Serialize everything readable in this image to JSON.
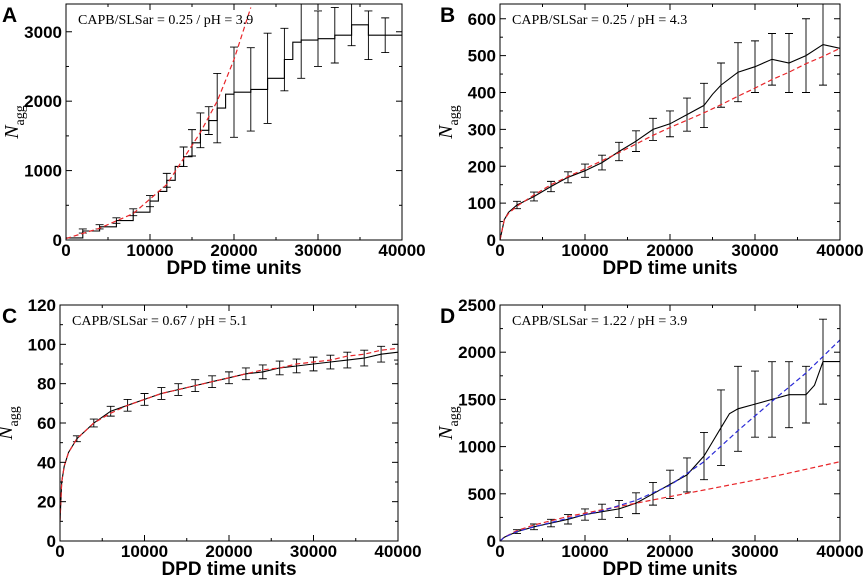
{
  "chart_data": [
    {
      "type": "line",
      "panel_label": "A",
      "annotation": "CAPB/SLSar = 0.25 / pH = 3.9",
      "xlabel": "DPD time units",
      "ylabel_main": "N",
      "ylabel_sub": "agg",
      "xlim": [
        0,
        40000
      ],
      "ylim": [
        0,
        3400
      ],
      "xticks": [
        0,
        10000,
        20000,
        30000,
        40000
      ],
      "yticks": [
        0,
        1000,
        2000,
        3000
      ],
      "colors": {
        "data": "#000000",
        "fit_red": "#e8262a",
        "fit_blue": "#2a2ad6"
      },
      "series": [
        {
          "name": "simulation",
          "style": "step",
          "x": [
            0,
            2000,
            4000,
            6000,
            8000,
            10000,
            11000,
            12000,
            13000,
            14000,
            15000,
            16000,
            17000,
            18000,
            19000,
            20000,
            22000,
            24000,
            25000,
            26000,
            27000,
            28000,
            30000,
            32000,
            34000,
            35000,
            36000,
            37000,
            38000,
            40000
          ],
          "y": [
            30,
            130,
            190,
            280,
            400,
            560,
            700,
            860,
            1060,
            1200,
            1400,
            1580,
            1720,
            1900,
            2100,
            2130,
            2170,
            2330,
            2330,
            2600,
            2850,
            2880,
            2900,
            2950,
            3100,
            3100,
            2950,
            2950,
            2950,
            2950
          ]
        },
        {
          "name": "fit",
          "style": "dashed",
          "x": [
            0,
            4000,
            8000,
            12000,
            16000,
            18000,
            20000,
            22000
          ],
          "y": [
            20,
            170,
            380,
            800,
            1550,
            2000,
            2600,
            3350
          ]
        }
      ],
      "error_bars": {
        "x": [
          2000,
          4000,
          6000,
          8000,
          10000,
          12000,
          14000,
          15000,
          16000,
          17000,
          18000,
          20000,
          22000,
          24000,
          26000,
          28000,
          30000,
          32000,
          34000,
          36000,
          38000
        ],
        "y": [
          130,
          190,
          280,
          400,
          560,
          860,
          1200,
          1400,
          1580,
          1720,
          1900,
          2130,
          2170,
          2330,
          2600,
          2880,
          2900,
          2950,
          3100,
          2950,
          2950
        ],
        "err": [
          30,
          30,
          40,
          50,
          80,
          100,
          140,
          190,
          250,
          200,
          500,
          650,
          600,
          650,
          450,
          550,
          400,
          400,
          300,
          350,
          250
        ]
      }
    },
    {
      "type": "line",
      "panel_label": "B",
      "annotation": "CAPB/SLSar = 0.25 / pH = 4.3",
      "xlabel": "DPD time units",
      "ylabel_main": "N",
      "ylabel_sub": "agg",
      "xlim": [
        0,
        40000
      ],
      "ylim": [
        0,
        640
      ],
      "xticks": [
        0,
        10000,
        20000,
        30000,
        40000
      ],
      "yticks": [
        0,
        100,
        200,
        300,
        400,
        500,
        600
      ],
      "colors": {
        "data": "#000000",
        "fit_red": "#e8262a",
        "fit_blue": "#2a2ad6"
      },
      "series": [
        {
          "name": "simulation",
          "style": "line",
          "x": [
            0,
            500,
            1000,
            2000,
            4000,
            6000,
            8000,
            10000,
            12000,
            14000,
            16000,
            18000,
            20000,
            22000,
            24000,
            25000,
            26000,
            28000,
            30000,
            32000,
            34000,
            36000,
            38000,
            40000
          ],
          "y": [
            0,
            55,
            75,
            95,
            118,
            145,
            170,
            188,
            210,
            240,
            268,
            300,
            315,
            340,
            365,
            395,
            420,
            455,
            470,
            490,
            480,
            500,
            530,
            520
          ]
        },
        {
          "name": "fit",
          "style": "dashed",
          "x": [
            0,
            500,
            1000,
            2000,
            4000,
            6000,
            8000,
            10000,
            12000,
            14000,
            16000,
            18000,
            20000,
            22000,
            24000,
            26000,
            28000,
            30000,
            32000,
            34000,
            36000,
            38000,
            40000
          ],
          "y": [
            0,
            55,
            72,
            92,
            122,
            150,
            172,
            193,
            215,
            237,
            260,
            284,
            305,
            325,
            345,
            367,
            390,
            412,
            435,
            455,
            478,
            498,
            520
          ]
        }
      ],
      "error_bars": {
        "x": [
          2000,
          4000,
          6000,
          8000,
          10000,
          12000,
          14000,
          16000,
          18000,
          20000,
          22000,
          24000,
          26000,
          28000,
          30000,
          32000,
          34000,
          36000,
          38000
        ],
        "y": [
          95,
          118,
          145,
          170,
          188,
          210,
          240,
          268,
          300,
          315,
          340,
          365,
          420,
          455,
          470,
          490,
          480,
          500,
          530
        ],
        "err": [
          10,
          12,
          14,
          15,
          18,
          20,
          25,
          28,
          30,
          35,
          45,
          60,
          60,
          80,
          70,
          70,
          80,
          100,
          110
        ]
      }
    },
    {
      "type": "line",
      "panel_label": "C",
      "annotation": "CAPB/SLSar = 0.67 / pH = 5.1",
      "xlabel": "DPD time units",
      "ylabel_main": "N",
      "ylabel_sub": "agg",
      "xlim": [
        0,
        40000
      ],
      "ylim": [
        0,
        120
      ],
      "xticks": [
        0,
        10000,
        20000,
        30000,
        40000
      ],
      "yticks": [
        0,
        20,
        40,
        60,
        80,
        100,
        120
      ],
      "colors": {
        "data": "#000000",
        "fit_red": "#e8262a",
        "fit_blue": "#2a2ad6"
      },
      "series": [
        {
          "name": "simulation",
          "style": "line",
          "x": [
            0,
            200,
            500,
            1000,
            2000,
            4000,
            6000,
            8000,
            10000,
            12000,
            14000,
            16000,
            18000,
            20000,
            22000,
            24000,
            26000,
            28000,
            30000,
            32000,
            34000,
            36000,
            38000,
            40000
          ],
          "y": [
            10,
            30,
            38,
            45,
            52,
            60,
            66,
            69,
            72,
            75,
            77,
            79,
            81,
            83,
            85,
            86,
            88,
            89,
            90,
            91,
            92,
            93,
            95,
            96
          ]
        },
        {
          "name": "fit",
          "style": "dashed",
          "x": [
            0,
            200,
            500,
            1000,
            2000,
            4000,
            6000,
            8000,
            10000,
            12000,
            14000,
            16000,
            18000,
            20000,
            22000,
            24000,
            26000,
            28000,
            30000,
            32000,
            34000,
            36000,
            38000,
            40000
          ],
          "y": [
            10,
            30,
            38,
            45,
            52,
            60,
            65,
            69,
            72,
            75,
            77,
            79,
            81,
            83,
            85,
            87,
            88,
            90,
            91,
            92,
            94,
            95,
            97,
            98
          ]
        }
      ],
      "error_bars": {
        "x": [
          2000,
          4000,
          6000,
          8000,
          10000,
          12000,
          14000,
          16000,
          18000,
          20000,
          22000,
          24000,
          26000,
          28000,
          30000,
          32000,
          34000,
          36000,
          38000,
          40000
        ],
        "y": [
          52,
          60,
          66,
          69,
          72,
          75,
          77,
          79,
          81,
          83,
          85,
          86,
          88,
          89,
          90,
          91,
          92,
          93,
          95,
          96
        ],
        "err": [
          1.5,
          2,
          2.5,
          3,
          3,
          3,
          3,
          3,
          3,
          3,
          3,
          3.5,
          3.5,
          3.5,
          3.5,
          3.5,
          4,
          4,
          4,
          4
        ]
      }
    },
    {
      "type": "line",
      "panel_label": "D",
      "annotation": "CAPB/SLSar = 1.22 / pH = 3.9",
      "xlabel": "DPD time units",
      "ylabel_main": "N",
      "ylabel_sub": "agg",
      "xlim": [
        0,
        40000
      ],
      "ylim": [
        0,
        2500
      ],
      "xticks": [
        0,
        10000,
        20000,
        30000,
        40000
      ],
      "yticks": [
        0,
        500,
        1000,
        1500,
        2000,
        2500
      ],
      "colors": {
        "data": "#000000",
        "fit_red": "#e8262a",
        "fit_blue": "#2a2ad6"
      },
      "series": [
        {
          "name": "simulation",
          "style": "line",
          "x": [
            0,
            500,
            2000,
            4000,
            6000,
            8000,
            10000,
            12000,
            14000,
            16000,
            18000,
            20000,
            22000,
            24000,
            25000,
            26000,
            27000,
            28000,
            30000,
            32000,
            34000,
            36000,
            37000,
            38000,
            40000
          ],
          "y": [
            0,
            40,
            100,
            150,
            190,
            230,
            280,
            310,
            340,
            400,
            500,
            600,
            700,
            900,
            1050,
            1200,
            1350,
            1400,
            1450,
            1500,
            1550,
            1550,
            1650,
            1900,
            1900
          ]
        },
        {
          "name": "fit_linear",
          "style": "dashed",
          "color": "red",
          "x": [
            0,
            500,
            2000,
            4000,
            8000,
            12000,
            16000,
            20000,
            24000,
            28000,
            32000,
            36000,
            40000
          ],
          "y": [
            0,
            40,
            110,
            170,
            260,
            330,
            400,
            470,
            540,
            610,
            680,
            760,
            840
          ]
        },
        {
          "name": "fit_growth",
          "style": "dashed",
          "color": "blue",
          "x": [
            0,
            500,
            2000,
            4000,
            8000,
            12000,
            16000,
            20000,
            24000,
            28000,
            32000,
            36000,
            40000
          ],
          "y": [
            0,
            40,
            100,
            150,
            240,
            320,
            430,
            590,
            840,
            1170,
            1480,
            1780,
            2130
          ]
        }
      ],
      "error_bars": {
        "x": [
          2000,
          4000,
          6000,
          8000,
          10000,
          12000,
          14000,
          16000,
          18000,
          20000,
          22000,
          24000,
          26000,
          28000,
          30000,
          32000,
          34000,
          36000,
          38000
        ],
        "y": [
          100,
          150,
          190,
          230,
          280,
          310,
          340,
          400,
          500,
          600,
          700,
          900,
          1200,
          1400,
          1450,
          1500,
          1550,
          1550,
          1900
        ],
        "err": [
          20,
          30,
          40,
          50,
          60,
          80,
          90,
          110,
          120,
          150,
          180,
          250,
          400,
          450,
          350,
          400,
          350,
          300,
          450
        ]
      }
    }
  ]
}
